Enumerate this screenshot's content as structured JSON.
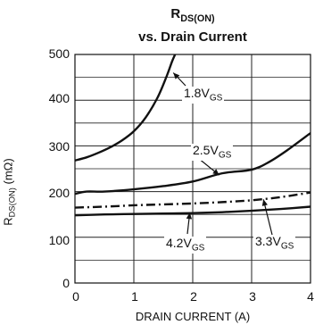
{
  "chart_data": {
    "type": "line",
    "title_main": "R",
    "title_sub": "DS(ON)",
    "subtitle": "vs. Drain Current",
    "xlabel": "DRAIN CURRENT (A)",
    "ylabel_main": "R",
    "ylabel_sub": "DS(ON)",
    "ylabel_unit": " (mΩ)",
    "xlim": [
      0,
      4
    ],
    "ylim": [
      0,
      500
    ],
    "xticks": [
      "0",
      "1",
      "2",
      "3",
      "4"
    ],
    "yticks": [
      "0",
      "100",
      "200",
      "300",
      "400",
      "500"
    ],
    "grid": true,
    "series": [
      {
        "id": "1.8",
        "label_main": "1.8V",
        "label_sub": "GS",
        "style": "solid",
        "x": [
          0,
          0.2,
          0.4,
          0.6,
          0.8,
          1.0,
          1.2,
          1.4,
          1.55,
          1.65,
          1.7
        ],
        "y": [
          268,
          275,
          285,
          297,
          312,
          332,
          362,
          405,
          450,
          485,
          500
        ]
      },
      {
        "id": "2.5",
        "label_main": "2.5V",
        "label_sub": "GS",
        "style": "solid",
        "x": [
          0,
          0.2,
          0.5,
          1.0,
          1.5,
          2.0,
          2.5,
          3.0,
          3.3,
          3.6,
          4.0
        ],
        "y": [
          195,
          200,
          200,
          205,
          212,
          222,
          240,
          248,
          265,
          290,
          328
        ]
      },
      {
        "id": "3.3",
        "label_main": "3.3V",
        "label_sub": "GS",
        "style": "dashdot",
        "x": [
          0,
          0.5,
          1.0,
          1.5,
          2.0,
          2.5,
          3.0,
          3.5,
          4.0
        ],
        "y": [
          165,
          167,
          170,
          172,
          174,
          177,
          181,
          188,
          198
        ]
      },
      {
        "id": "4.2",
        "label_main": "4.2V",
        "label_sub": "GS",
        "style": "solid",
        "x": [
          0,
          0.5,
          1.0,
          1.5,
          2.0,
          2.5,
          3.0,
          3.5,
          4.0
        ],
        "y": [
          148,
          150,
          151,
          152,
          153,
          155,
          158,
          162,
          167
        ]
      }
    ]
  }
}
